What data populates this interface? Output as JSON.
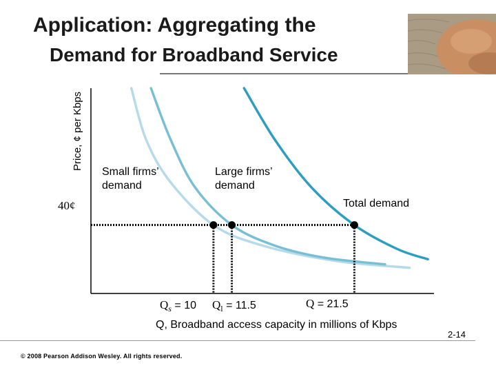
{
  "slide": {
    "title_line1": "Application: Aggregating the",
    "title_line2": "Demand for Broadband Service",
    "footer": "© 2008 Pearson Addison Wesley. All rights reserved.",
    "page_number": "2-14"
  },
  "chart_data": {
    "type": "line",
    "ylabel": "Price, ¢ per Kbps",
    "xlabel": "Q, Broadband access capacity in millions of Kbps",
    "price_tick": "40¢",
    "series": [
      {
        "name": "Small firms’ demand",
        "color": "#b5dbe8",
        "points": [
          [
            3.3,
            120
          ],
          [
            4.5,
            90
          ],
          [
            6.5,
            65
          ],
          [
            10,
            40
          ],
          [
            14,
            28
          ],
          [
            20,
            19
          ],
          [
            26,
            15
          ]
        ]
      },
      {
        "name": "Large firms’ demand",
        "color": "#78bfd6",
        "points": [
          [
            4.9,
            120
          ],
          [
            6.5,
            90
          ],
          [
            8.5,
            62
          ],
          [
            11.5,
            40
          ],
          [
            15,
            28
          ],
          [
            19,
            21
          ],
          [
            24,
            17
          ]
        ]
      },
      {
        "name": "Total demand",
        "color": "#2e9ec0",
        "points": [
          [
            12.5,
            120
          ],
          [
            15,
            90
          ],
          [
            18,
            62
          ],
          [
            21.5,
            40
          ],
          [
            25,
            26
          ],
          [
            27.5,
            20
          ]
        ]
      }
    ],
    "reference_price": 40,
    "quantities": [
      {
        "label_main": "Q",
        "label_sub": "s",
        "label_rest": " = 10",
        "value": 10
      },
      {
        "label_main": "Q",
        "label_sub": "l",
        "label_rest": " = 11.5",
        "value": 11.5
      },
      {
        "label_main": "Q",
        "label_sub": "",
        "label_rest": " =  21.5",
        "value": 21.5
      }
    ],
    "xlim": [
      0,
      28
    ],
    "ylim": [
      0,
      120
    ],
    "grid": false
  }
}
